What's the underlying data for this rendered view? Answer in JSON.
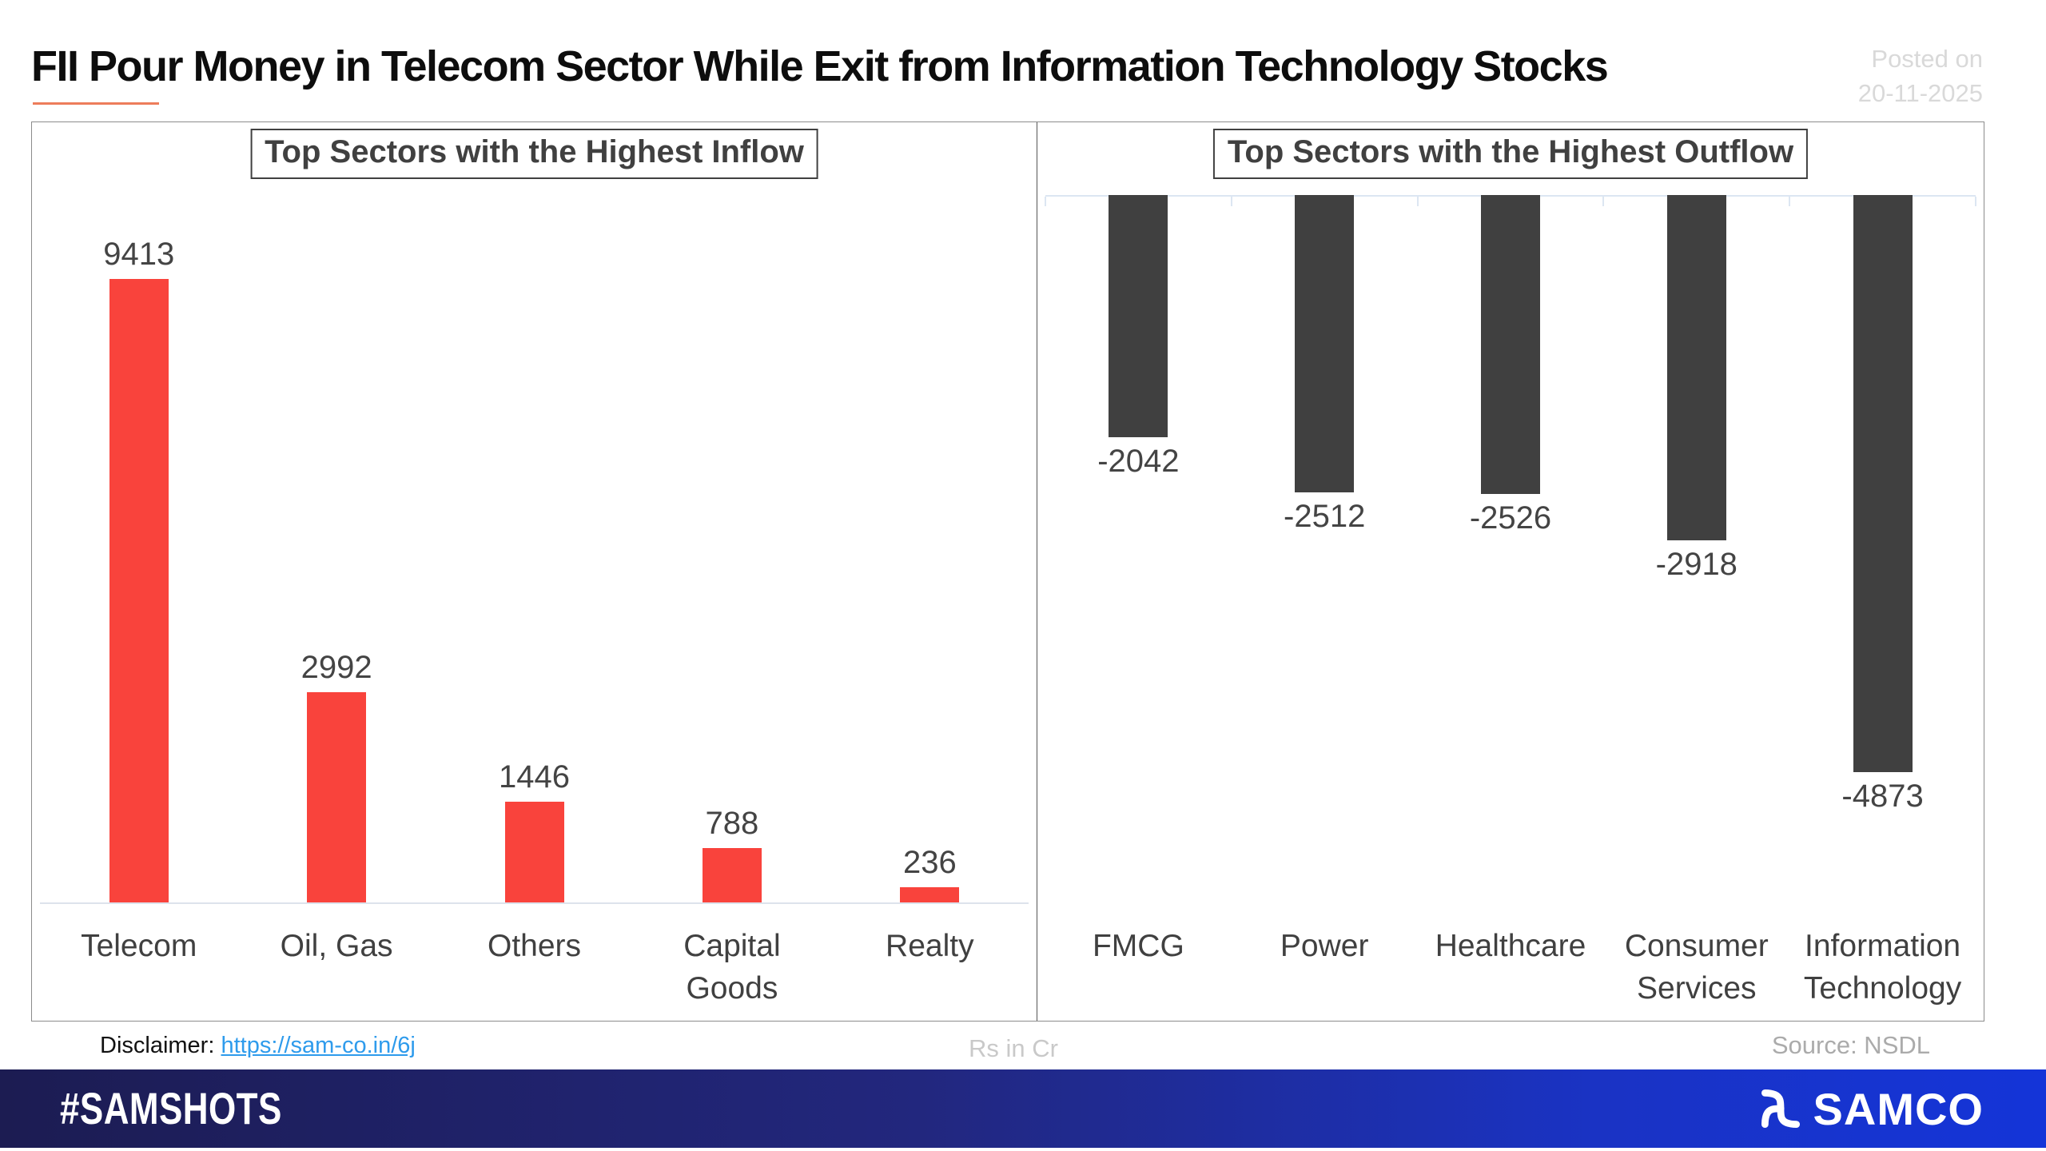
{
  "header": {
    "title": "FII Pour Money in Telecom Sector While Exit from Information Technology Stocks",
    "posted_line1": "Posted on",
    "posted_line2": "20-11-2025"
  },
  "chart_data": [
    {
      "type": "bar",
      "title": "Top Sectors with the Highest Inflow",
      "categories": [
        "Telecom",
        "Oil, Gas",
        "Others",
        "Capital\nGoods",
        "Realty"
      ],
      "values": [
        9413,
        2992,
        1446,
        788,
        236
      ],
      "bar_color": "#F9433C",
      "value_label_position": "above",
      "xlabel": "",
      "ylabel": "",
      "ylim": [
        0,
        9413
      ],
      "grid": false,
      "legend": "none",
      "units": "Rs in Cr"
    },
    {
      "type": "bar",
      "title": "Top Sectors with the Highest Outflow",
      "categories": [
        "FMCG",
        "Power",
        "Healthcare",
        "Consumer\nServices",
        "Information\nTechnology"
      ],
      "values": [
        -2042,
        -2512,
        -2526,
        -2918,
        -4873
      ],
      "bar_color": "#404040",
      "value_label_position": "below",
      "xlabel": "",
      "ylabel": "",
      "ylim": [
        -4873,
        0
      ],
      "grid": false,
      "legend": "none",
      "units": "Rs in Cr"
    }
  ],
  "notes": {
    "disclaimer_label": "Disclaimer:",
    "disclaimer_link": "https://sam-co.in/6j",
    "units_label": "Rs in Cr",
    "source_label": "Source: NSDL"
  },
  "footer": {
    "hashtag": "#SAMSHOTS",
    "brand": "SAMCO"
  },
  "colors": {
    "inflow_bar": "#F9433C",
    "outflow_bar": "#404040",
    "title_accent_underline": "#ED7D5B",
    "link_blue": "#2E9BEC",
    "footer_navy": "#1C1C52",
    "footer_blue": "#1434D8"
  }
}
